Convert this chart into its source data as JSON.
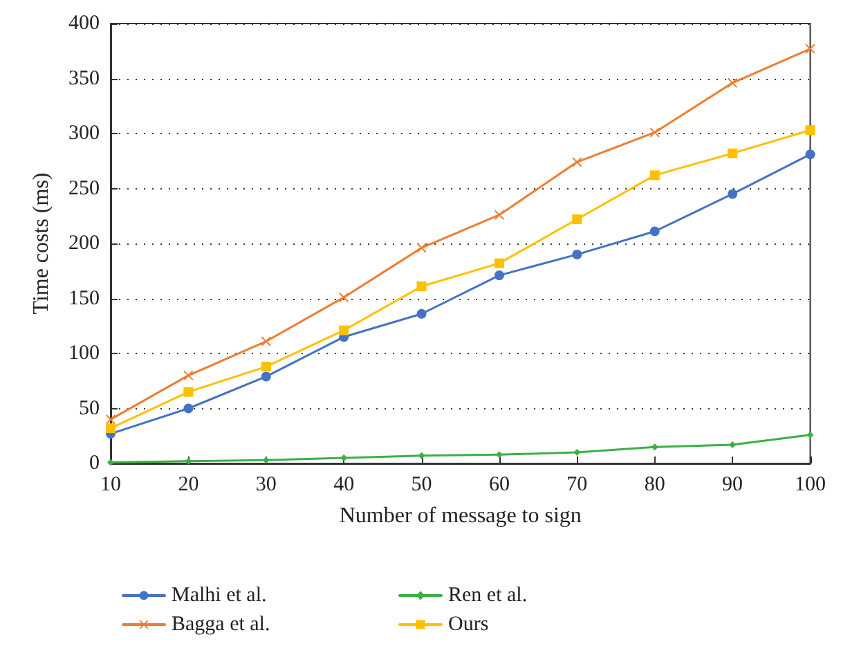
{
  "chart_data": {
    "type": "line",
    "xlabel": "Number of message to sign",
    "ylabel": "Time costs (ms)",
    "x": [
      10,
      20,
      30,
      40,
      50,
      60,
      70,
      80,
      90,
      100
    ],
    "series": [
      {
        "name": "Malhi et al.",
        "color": "#4472c4",
        "marker": "circle",
        "values": [
          27,
          50,
          79,
          115,
          136,
          171,
          190,
          211,
          245,
          281
        ]
      },
      {
        "name": "Bagga et al.",
        "color": "#ed7d31",
        "marker": "cross",
        "values": [
          40,
          80,
          111,
          151,
          196,
          226,
          274,
          301,
          346,
          377
        ]
      },
      {
        "name": "Ren et al.",
        "color": "#3cb043",
        "marker": "diamond",
        "values": [
          1,
          2,
          3,
          5,
          7,
          8,
          10,
          15,
          17,
          26
        ]
      },
      {
        "name": "Ours",
        "color": "#ffc000",
        "marker": "square",
        "values": [
          32,
          65,
          88,
          121,
          161,
          182,
          222,
          262,
          282,
          303
        ]
      }
    ],
    "xlim": [
      10,
      100
    ],
    "xticks": [
      10,
      20,
      30,
      40,
      50,
      60,
      70,
      80,
      90,
      100
    ],
    "ylim": [
      0,
      400
    ],
    "yticks": [
      0,
      50,
      100,
      150,
      200,
      250,
      300,
      350,
      400
    ],
    "grid": "y",
    "legend": "bottom",
    "line_style": "solid"
  }
}
